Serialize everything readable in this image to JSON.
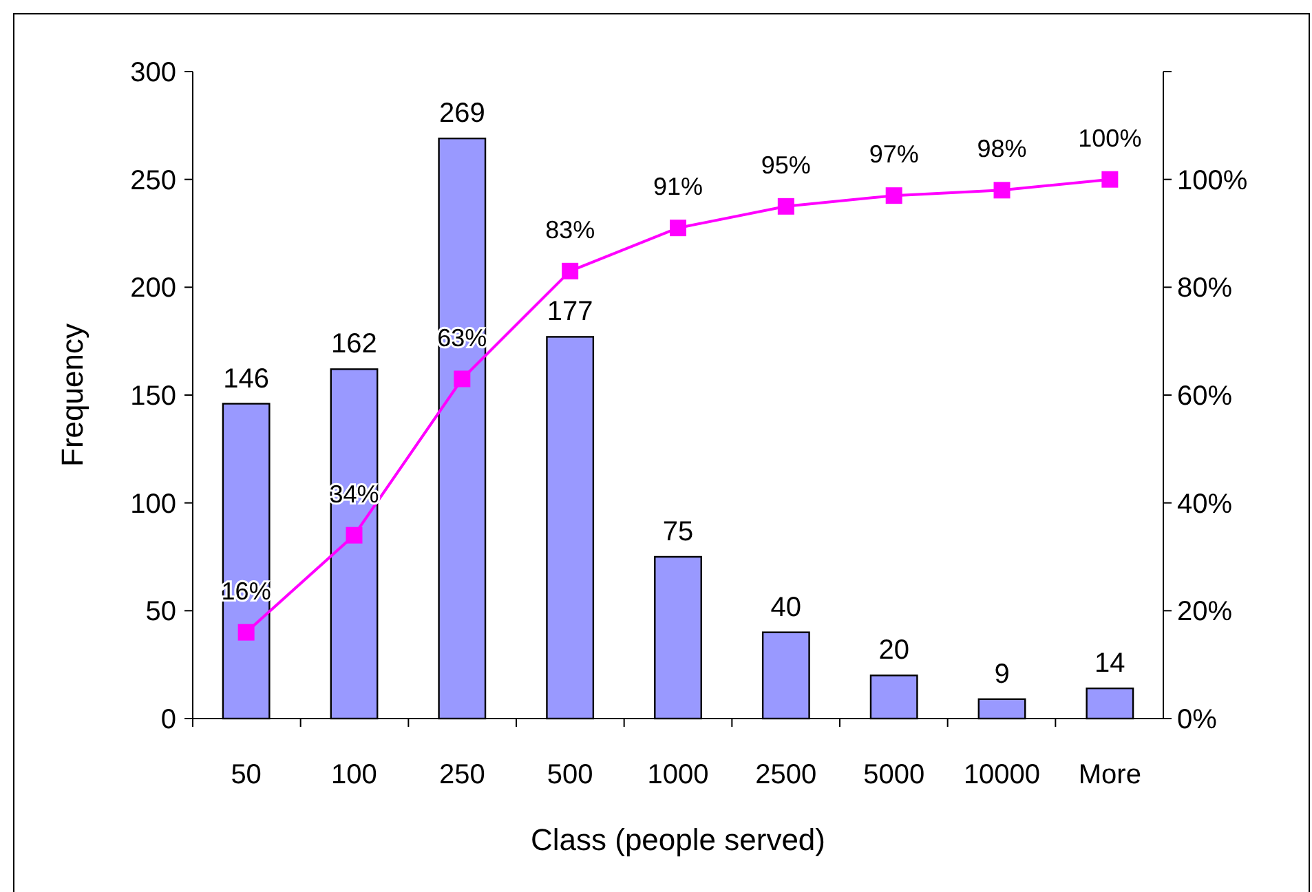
{
  "chart_data": {
    "type": "bar",
    "xlabel": "Class (people served)",
    "ylabel": "Frequency",
    "categories": [
      "50",
      "100",
      "250",
      "500",
      "1000",
      "2500",
      "5000",
      "10000",
      "More"
    ],
    "series": [
      {
        "color": "#9999ff",
        "values": [
          146,
          162,
          269,
          177,
          75,
          40,
          20,
          9,
          14
        ]
      },
      {
        "type": "line",
        "axis": "y2",
        "color": "#ff00ff",
        "marker": "square",
        "values": [
          16,
          34,
          63,
          83,
          91,
          95,
          97,
          98,
          100
        ],
        "value_labels": [
          "16%",
          "34%",
          "63%",
          "83%",
          "91%",
          "95%",
          "97%",
          "98%",
          "100%"
        ]
      }
    ],
    "data_labels": true,
    "ylim": [
      0,
      300
    ],
    "yticks": [
      0,
      50,
      100,
      150,
      200,
      250,
      300
    ],
    "y2lim": [
      0,
      120
    ],
    "y2ticks": [
      {
        "value": 0,
        "label": "0%"
      },
      {
        "value": 20,
        "label": "20%"
      },
      {
        "value": 40,
        "label": "40%"
      },
      {
        "value": 60,
        "label": "60%"
      },
      {
        "value": 80,
        "label": "80%"
      },
      {
        "value": 100,
        "label": "100%"
      },
      {
        "value": 120,
        "label": null
      }
    ],
    "grid": false
  }
}
